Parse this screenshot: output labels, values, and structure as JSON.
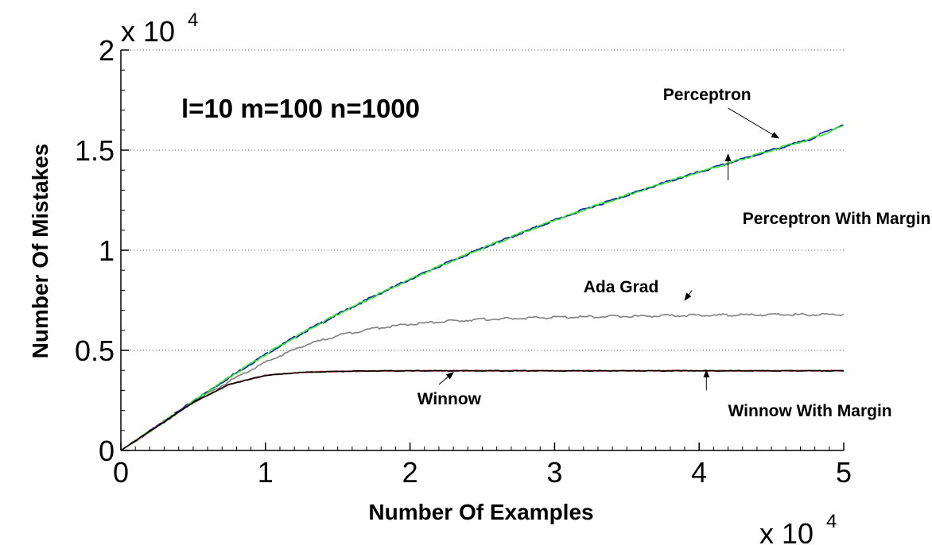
{
  "chart_data": {
    "type": "line",
    "xlabel": "Number Of Examples",
    "ylabel": "Number Of Mistakes",
    "x_multiplier": {
      "base": "x 10",
      "exp": "4"
    },
    "y_multiplier": {
      "base": "x 10",
      "exp": "4"
    },
    "xlim": [
      0,
      5
    ],
    "ylim": [
      0,
      2
    ],
    "x_ticks": [
      "0",
      "1",
      "2",
      "3",
      "4",
      "5"
    ],
    "y_ticks": [
      "0",
      "0.5",
      "1",
      "1.5",
      "2"
    ],
    "grid": "horizontal-dotted",
    "parameters_text": "l=10 m=100 n=1000",
    "x": [
      0,
      0.25,
      0.5,
      0.75,
      1,
      1.25,
      1.5,
      1.75,
      2,
      2.25,
      2.5,
      2.75,
      3,
      3.25,
      3.5,
      3.75,
      4,
      4.25,
      4.5,
      4.75,
      5
    ],
    "series": [
      {
        "name": "Perceptron",
        "color": "#0a1aa8",
        "values": [
          0,
          0.12,
          0.245,
          0.365,
          0.48,
          0.585,
          0.68,
          0.77,
          0.855,
          0.935,
          1.01,
          1.08,
          1.15,
          1.215,
          1.275,
          1.335,
          1.39,
          1.445,
          1.5,
          1.55,
          1.63
        ]
      },
      {
        "name": "Perceptron With Margin",
        "color": "#33e633",
        "values": [
          0,
          0.12,
          0.245,
          0.365,
          0.48,
          0.585,
          0.68,
          0.77,
          0.855,
          0.935,
          1.01,
          1.08,
          1.15,
          1.215,
          1.275,
          1.335,
          1.39,
          1.445,
          1.5,
          1.55,
          1.62
        ]
      },
      {
        "name": "Ada Grad",
        "color": "#808080",
        "values": [
          0,
          0.12,
          0.24,
          0.345,
          0.44,
          0.52,
          0.575,
          0.61,
          0.63,
          0.645,
          0.655,
          0.66,
          0.665,
          0.668,
          0.67,
          0.672,
          0.675,
          0.677,
          0.678,
          0.679,
          0.68
        ]
      },
      {
        "name": "Winnow",
        "color": "#000000",
        "values": [
          0,
          0.12,
          0.24,
          0.33,
          0.375,
          0.39,
          0.395,
          0.397,
          0.398,
          0.398,
          0.398,
          0.398,
          0.398,
          0.398,
          0.398,
          0.398,
          0.398,
          0.398,
          0.398,
          0.398,
          0.398
        ]
      },
      {
        "name": "Winnow With Margin",
        "color": "#c03020",
        "values": [
          0,
          0.12,
          0.24,
          0.33,
          0.375,
          0.39,
          0.395,
          0.397,
          0.398,
          0.398,
          0.398,
          0.398,
          0.398,
          0.398,
          0.398,
          0.398,
          0.398,
          0.398,
          0.398,
          0.398,
          0.398
        ]
      }
    ],
    "annotations": [
      {
        "text": "Perceptron",
        "label_at": [
          3.75,
          1.75
        ],
        "arrow_from": [
          4.2,
          1.71
        ],
        "arrow_to": [
          4.55,
          1.56
        ]
      },
      {
        "text": "Perceptron With Margin",
        "label_at": [
          4.3,
          1.13
        ],
        "arrow_from": [
          4.2,
          1.35
        ],
        "arrow_to": [
          4.2,
          1.48
        ]
      },
      {
        "text": "Ada Grad",
        "label_at": [
          3.2,
          0.79
        ],
        "arrow_from": [
          3.95,
          0.8
        ],
        "arrow_to": [
          3.9,
          0.75
        ]
      },
      {
        "text": "Winnow",
        "label_at": [
          2.05,
          0.23
        ],
        "arrow_from": [
          2.2,
          0.33
        ],
        "arrow_to": [
          2.3,
          0.39
        ]
      },
      {
        "text": "Winnow With Margin",
        "label_at": [
          4.2,
          0.17
        ],
        "arrow_from": [
          4.05,
          0.3
        ],
        "arrow_to": [
          4.05,
          0.4
        ]
      }
    ]
  }
}
